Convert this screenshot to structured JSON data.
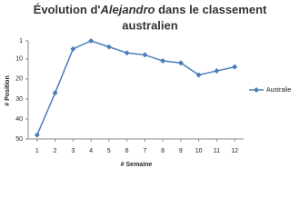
{
  "chart_data": {
    "type": "line",
    "title": [
      "Évolution d'",
      "Alejandro",
      " dans le classement",
      "australien"
    ],
    "x_label": "# Semaine",
    "y_label": "# Position",
    "x": [
      1,
      2,
      3,
      4,
      5,
      6,
      7,
      8,
      9,
      10,
      11,
      12
    ],
    "xlim": [
      0.5,
      12.5
    ],
    "xticks": [
      1,
      2,
      3,
      4,
      5,
      6,
      7,
      8,
      9,
      10,
      11,
      12
    ],
    "series": [
      {
        "name": "Australie",
        "color": "#4a7ebb",
        "values": [
          48,
          27,
          5,
          1,
          4,
          7,
          8,
          11,
          12,
          18,
          16,
          14
        ]
      }
    ],
    "ylim": [
      1,
      50
    ],
    "y_inverted": true,
    "yticks": [
      1,
      10,
      20,
      30,
      40,
      50
    ],
    "grid": false,
    "legend": "right"
  }
}
